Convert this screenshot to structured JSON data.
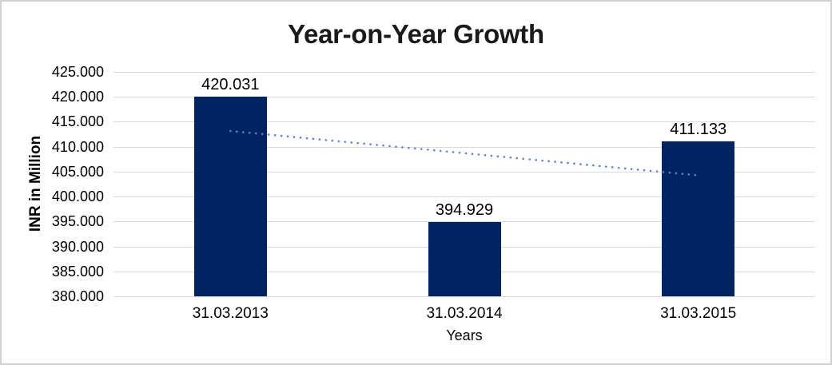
{
  "chart_data": {
    "type": "bar",
    "title": "Year-on-Year Growth",
    "xlabel": "Years",
    "ylabel": "INR in Million",
    "categories": [
      "31.03.2013",
      "31.03.2014",
      "31.03.2015"
    ],
    "values": [
      420.031,
      394.929,
      411.133
    ],
    "data_labels": [
      "420.031",
      "394.929",
      "411.133"
    ],
    "ylim": [
      380,
      425
    ],
    "ytick_step": 5,
    "yticks": [
      380,
      385,
      390,
      395,
      400,
      405,
      410,
      415,
      420,
      425
    ],
    "ytick_labels": [
      "380.000",
      "385.000",
      "390.000",
      "395.000",
      "400.000",
      "405.000",
      "410.000",
      "415.000",
      "420.000",
      "425.000"
    ],
    "grid": true,
    "legend": "none",
    "bar_color": "#002361",
    "gridline_color": "#d9d9d9",
    "text_color": "#000000",
    "title_color": "#1a1a1a",
    "background": "#ffffff",
    "frame_border_color": "#d0d0d0",
    "trendline": {
      "type": "linear",
      "style": "dotted",
      "color": "#5585d5",
      "start_value": 413.147,
      "end_value": 404.248
    }
  }
}
